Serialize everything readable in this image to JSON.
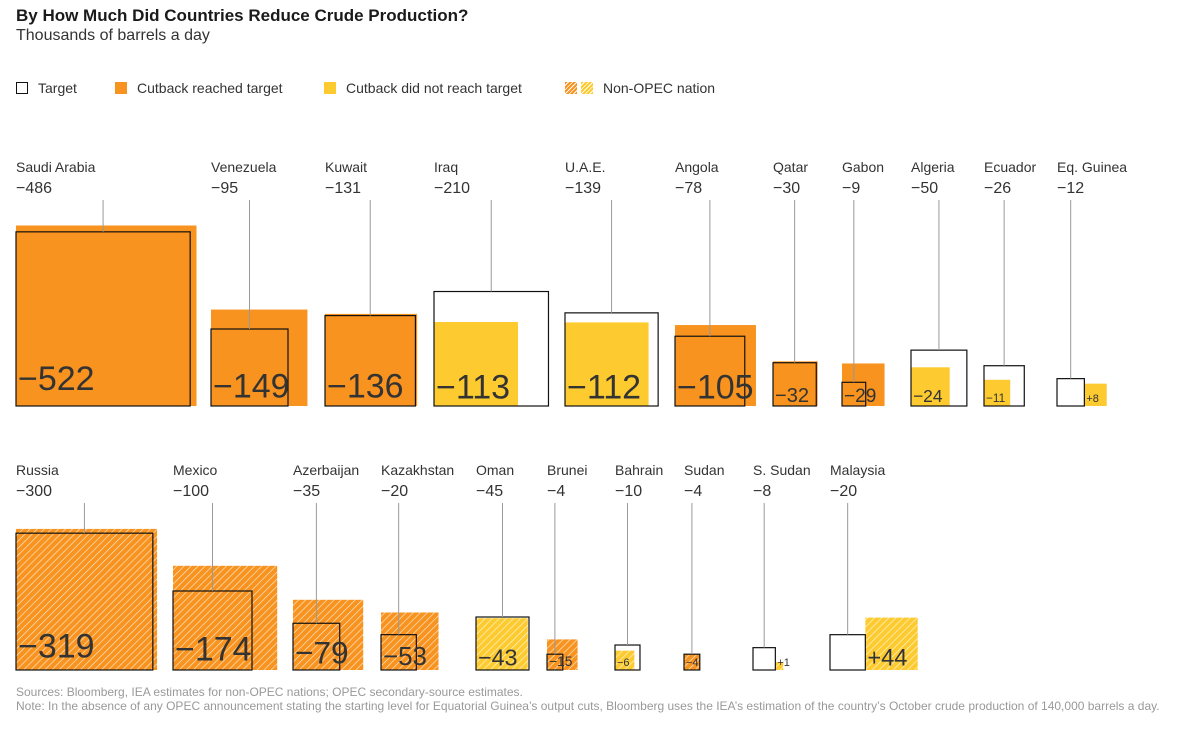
{
  "title": "By How Much Did Countries Reduce Crude Production?",
  "subtitle": "Thousands of barrels a day",
  "legend": {
    "target": "Target",
    "reached": "Cutback reached target",
    "not_reached": "Cutback did not reach target",
    "non_opec": "Non-OPEC nation"
  },
  "colors": {
    "reached": "#f7931e",
    "not_reached": "#fdcb2f",
    "target_outline": "#111111",
    "leader_line": "#999999"
  },
  "footer": {
    "sources": "Sources: Bloomberg, IEA estimates for non-OPEC nations; OPEC secondary-source estimates.",
    "note": "Note: In the absence of any OPEC announcement stating the starting level for Equatorial Guinea’s output cuts, Bloomberg uses the IEA’s estimation of the country’s October crude production of 140,000 barrels a day."
  },
  "chart_data": {
    "type": "proportional-area squares",
    "units": "thousands of barrels a day",
    "series": [
      {
        "name": "Target"
      },
      {
        "name": "Cutback reached target"
      },
      {
        "name": "Cutback did not reach target"
      },
      {
        "name": "Non-OPEC nation"
      }
    ],
    "rows": [
      {
        "group": "OPEC",
        "countries": [
          {
            "name": "Saudi Arabia",
            "target": -486,
            "actual": -522,
            "target_label": "−486",
            "actual_label": "−522",
            "reached": true,
            "opec": true
          },
          {
            "name": "Venezuela",
            "target": -95,
            "actual": -149,
            "target_label": "−95",
            "actual_label": "−149",
            "reached": true,
            "opec": true
          },
          {
            "name": "Kuwait",
            "target": -131,
            "actual": -136,
            "target_label": "−131",
            "actual_label": "−136",
            "reached": true,
            "opec": true
          },
          {
            "name": "Iraq",
            "target": -210,
            "actual": -113,
            "target_label": "−210",
            "actual_label": "−113",
            "reached": false,
            "opec": true
          },
          {
            "name": "U.A.E.",
            "target": -139,
            "actual": -112,
            "target_label": "−139",
            "actual_label": "−112",
            "reached": false,
            "opec": true
          },
          {
            "name": "Angola",
            "target": -78,
            "actual": -105,
            "target_label": "−78",
            "actual_label": "−105",
            "reached": true,
            "opec": true
          },
          {
            "name": "Qatar",
            "target": -30,
            "actual": -32,
            "target_label": "−30",
            "actual_label": "−32",
            "reached": true,
            "opec": true
          },
          {
            "name": "Gabon",
            "target": -9,
            "actual": -29,
            "target_label": "−9",
            "actual_label": "−29",
            "reached": true,
            "opec": true
          },
          {
            "name": "Algeria",
            "target": -50,
            "actual": -24,
            "target_label": "−50",
            "actual_label": "−24",
            "reached": false,
            "opec": true
          },
          {
            "name": "Ecuador",
            "target": -26,
            "actual": -11,
            "target_label": "−26",
            "actual_label": "−11",
            "reached": false,
            "opec": true
          },
          {
            "name": "Eq. Guinea",
            "target": -12,
            "actual": 8,
            "target_label": "−12",
            "actual_label": "+8",
            "reached": false,
            "opec": true
          }
        ]
      },
      {
        "group": "Non-OPEC",
        "countries": [
          {
            "name": "Russia",
            "target": -300,
            "actual": -319,
            "target_label": "−300",
            "actual_label": "−319",
            "reached": true,
            "opec": false
          },
          {
            "name": "Mexico",
            "target": -100,
            "actual": -174,
            "target_label": "−100",
            "actual_label": "−174",
            "reached": true,
            "opec": false
          },
          {
            "name": "Azerbaijan",
            "target": -35,
            "actual": -79,
            "target_label": "−35",
            "actual_label": "−79",
            "reached": true,
            "opec": false
          },
          {
            "name": "Kazakhstan",
            "target": -20,
            "actual": -53,
            "target_label": "−20",
            "actual_label": "−53",
            "reached": true,
            "opec": false
          },
          {
            "name": "Oman",
            "target": -45,
            "actual": -43,
            "target_label": "−45",
            "actual_label": "−43",
            "reached": false,
            "opec": false
          },
          {
            "name": "Brunei",
            "target": -4,
            "actual": -15,
            "target_label": "−4",
            "actual_label": "−15",
            "reached": true,
            "opec": false
          },
          {
            "name": "Bahrain",
            "target": -10,
            "actual": -6,
            "target_label": "−10",
            "actual_label": "−6",
            "reached": false,
            "opec": false
          },
          {
            "name": "Sudan",
            "target": -4,
            "actual": -4,
            "target_label": "−4",
            "actual_label": "−4",
            "reached": true,
            "opec": false
          },
          {
            "name": "S. Sudan",
            "target": -8,
            "actual": 1,
            "target_label": "−8",
            "actual_label": "+1",
            "reached": false,
            "opec": false
          },
          {
            "name": "Malaysia",
            "target": -20,
            "actual": 44,
            "target_label": "−20",
            "actual_label": "+44",
            "reached": false,
            "opec": false
          }
        ]
      }
    ]
  }
}
